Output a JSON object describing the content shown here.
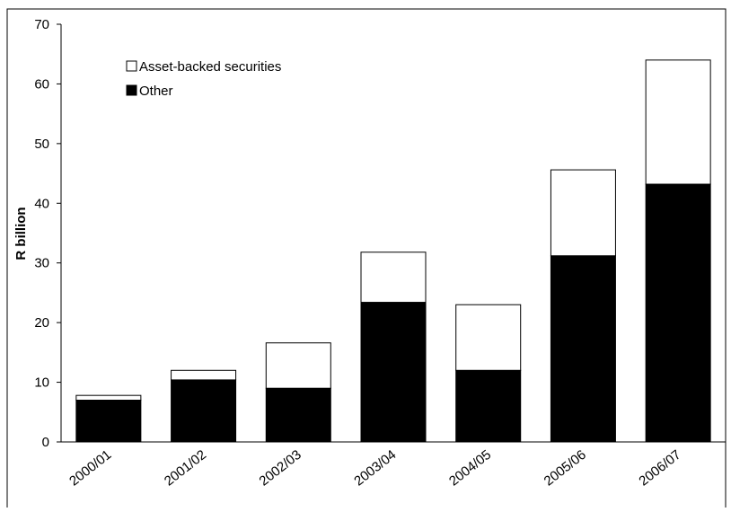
{
  "chart_data": {
    "type": "bar",
    "stacked": true,
    "categories": [
      "2000/01",
      "2001/02",
      "2002/03",
      "2003/04",
      "2004/05",
      "2005/06",
      "2006/07"
    ],
    "series": [
      {
        "name": "Other",
        "values": [
          7.0,
          10.4,
          9.0,
          23.4,
          12.0,
          31.2,
          43.2
        ],
        "color": "#000000"
      },
      {
        "name": "Asset-backed securities",
        "values": [
          0.8,
          1.6,
          7.6,
          8.4,
          11.0,
          14.4,
          20.8
        ],
        "color": "#ffffff"
      }
    ],
    "ylabel": "R billion",
    "xlabel": "",
    "ylim": [
      0,
      70
    ],
    "yticks": [
      0,
      10,
      20,
      30,
      40,
      50,
      60,
      70
    ],
    "grid": false,
    "legend": {
      "placement": "top-left",
      "entries": [
        "Asset-backed securities",
        "Other"
      ]
    }
  }
}
